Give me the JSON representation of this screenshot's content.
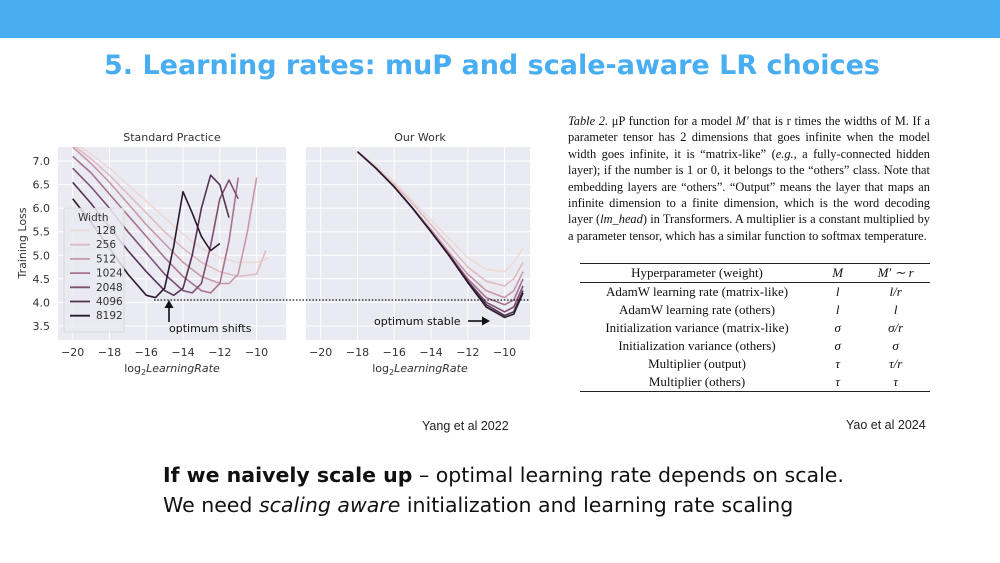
{
  "colors": {
    "bar": "#48adf1",
    "title": "#48adf1"
  },
  "title": "5. Learning rates: muP and scale-aware LR choices",
  "chart_data": [
    {
      "type": "line",
      "title": "Standard Practice",
      "xlabel": "log2LearningRate",
      "ylabel": "Training Loss",
      "xlim": [
        -20.8,
        -8.4
      ],
      "ylim": [
        3.2,
        7.3
      ],
      "xticks": [
        "−20",
        "−18",
        "−16",
        "−14",
        "−12",
        "−10"
      ],
      "yticks": [
        "7.0",
        "6.5",
        "6.0",
        "5.5",
        "5.0",
        "4.5",
        "4.0",
        "3.5"
      ],
      "legend": {
        "title": "Width",
        "placement": "left",
        "entries": [
          "128",
          "256",
          "512",
          "1024",
          "2048",
          "4096",
          "8192"
        ]
      },
      "annotation": "optimum shifts",
      "series": [
        {
          "name": "128",
          "color": "#ecdad6",
          "x": [
            -20,
            -19,
            -18,
            -17,
            -16,
            -15,
            -14,
            -13,
            -12,
            -11,
            -10,
            -9.3
          ],
          "y": [
            7.4,
            7.15,
            6.85,
            6.5,
            6.15,
            5.8,
            5.45,
            5.15,
            4.95,
            4.85,
            4.85,
            4.95
          ]
        },
        {
          "name": "256",
          "color": "#dfbcc0",
          "x": [
            -20,
            -19,
            -18,
            -17,
            -16,
            -15,
            -14,
            -13,
            -12,
            -11,
            -10,
            -9.5
          ],
          "y": [
            7.35,
            7.05,
            6.7,
            6.3,
            5.9,
            5.5,
            5.15,
            4.85,
            4.65,
            4.55,
            4.6,
            5.1
          ]
        },
        {
          "name": "512",
          "color": "#c898a8",
          "x": [
            -20,
            -19,
            -18,
            -17,
            -16,
            -15,
            -14,
            -13,
            -12,
            -11.5,
            -11,
            -10.5,
            -10
          ],
          "y": [
            7.3,
            6.95,
            6.55,
            6.1,
            5.65,
            5.25,
            4.85,
            4.55,
            4.4,
            4.4,
            4.6,
            5.5,
            6.65
          ]
        },
        {
          "name": "1024",
          "color": "#a8728f",
          "x": [
            -20,
            -19,
            -18,
            -17,
            -16,
            -15,
            -14,
            -13,
            -12.5,
            -12,
            -11.5,
            -11
          ],
          "y": [
            7.1,
            6.75,
            6.3,
            5.85,
            5.4,
            4.95,
            4.55,
            4.25,
            4.2,
            4.4,
            5.3,
            6.65
          ]
        },
        {
          "name": "2048",
          "color": "#7e4f73",
          "x": [
            -20,
            -19,
            -18,
            -17,
            -16,
            -15,
            -14,
            -13.5,
            -13,
            -12.5,
            -12,
            -11.5,
            -11
          ],
          "y": [
            6.85,
            6.45,
            6.0,
            5.5,
            5.05,
            4.6,
            4.25,
            4.2,
            4.4,
            5.2,
            6.2,
            6.6,
            6.2
          ]
        },
        {
          "name": "4096",
          "color": "#553352",
          "x": [
            -20,
            -19,
            -18,
            -17,
            -16,
            -15,
            -14.5,
            -14,
            -13.5,
            -13,
            -12.5,
            -12,
            -11.5
          ],
          "y": [
            6.55,
            6.1,
            5.6,
            5.1,
            4.65,
            4.25,
            4.15,
            4.3,
            5.0,
            6.0,
            6.7,
            6.5,
            5.8
          ]
        },
        {
          "name": "8192",
          "color": "#2b1a2e",
          "x": [
            -20,
            -19,
            -18,
            -17,
            -16,
            -15.5,
            -15,
            -14.5,
            -14,
            -13.5,
            -13,
            -12.5,
            -12
          ],
          "y": [
            6.2,
            5.7,
            5.15,
            4.6,
            4.15,
            4.1,
            4.3,
            5.2,
            6.35,
            5.9,
            5.4,
            5.1,
            5.25
          ]
        }
      ]
    },
    {
      "type": "line",
      "title": "Our Work",
      "xlabel": "log2LearningRate",
      "xlim": [
        -20.8,
        -8.4
      ],
      "ylim": [
        3.2,
        7.3
      ],
      "xticks": [
        "−20",
        "−18",
        "−16",
        "−14",
        "−12",
        "−10"
      ],
      "annotation": "optimum stable",
      "series": [
        {
          "name": "128",
          "color": "#ecdad6",
          "x": [
            -18,
            -17,
            -16,
            -15,
            -14,
            -13,
            -12,
            -11,
            -10,
            -9.5,
            -9
          ],
          "y": [
            7.2,
            6.9,
            6.55,
            6.15,
            5.75,
            5.35,
            4.95,
            4.7,
            4.65,
            4.85,
            5.15
          ]
        },
        {
          "name": "256",
          "color": "#dfbcc0",
          "x": [
            -18,
            -17,
            -16,
            -15,
            -14,
            -13,
            -12,
            -11,
            -10,
            -9.5,
            -9
          ],
          "y": [
            7.2,
            6.85,
            6.5,
            6.1,
            5.65,
            5.2,
            4.75,
            4.45,
            4.35,
            4.5,
            4.85
          ]
        },
        {
          "name": "512",
          "color": "#c898a8",
          "x": [
            -18,
            -17,
            -16,
            -15,
            -14,
            -13,
            -12,
            -11,
            -10,
            -9.5,
            -9
          ],
          "y": [
            7.2,
            6.85,
            6.45,
            6.0,
            5.55,
            5.05,
            4.6,
            4.25,
            4.1,
            4.25,
            4.65
          ]
        },
        {
          "name": "1024",
          "color": "#a8728f",
          "x": [
            -18,
            -17,
            -16,
            -15,
            -14,
            -13,
            -12,
            -11,
            -10,
            -9.5,
            -9
          ],
          "y": [
            7.2,
            6.85,
            6.45,
            6.0,
            5.5,
            5.0,
            4.5,
            4.1,
            3.95,
            4.05,
            4.5
          ]
        },
        {
          "name": "2048",
          "color": "#7e4f73",
          "x": [
            -18,
            -17,
            -16,
            -15,
            -14,
            -13,
            -12,
            -11,
            -10,
            -9.5,
            -9
          ],
          "y": [
            7.2,
            6.85,
            6.45,
            6.0,
            5.5,
            5.0,
            4.45,
            4.0,
            3.8,
            3.9,
            4.35
          ]
        },
        {
          "name": "4096",
          "color": "#553352",
          "x": [
            -18,
            -17,
            -16,
            -15,
            -14,
            -13,
            -12,
            -11,
            -10,
            -9.5,
            -9
          ],
          "y": [
            7.2,
            6.85,
            6.45,
            6.0,
            5.5,
            5.0,
            4.45,
            3.95,
            3.72,
            3.8,
            4.25
          ]
        },
        {
          "name": "8192",
          "color": "#2b1a2e",
          "x": [
            -18,
            -17,
            -16,
            -15,
            -14,
            -13,
            -12,
            -11,
            -10,
            -9.5,
            -9
          ],
          "y": [
            7.2,
            6.85,
            6.45,
            6.0,
            5.5,
            4.98,
            4.42,
            3.9,
            3.68,
            3.75,
            4.2
          ]
        }
      ]
    }
  ],
  "caption": {
    "table_label": "Table 2.",
    "p1": " μP function for a model ",
    "mvar": "M′",
    "p2": " that is r times the widths of M. If a parameter tensor has 2 dimensions that goes infinite when the model width goes infinite, it is “matrix-like” (",
    "eg": "e.g.,",
    "p3": " a fully-connected hidden layer); if the number is 1 or 0, it belongs to the “others” class. Note that embedding layers are “others”. “Output” means the layer that maps an infinite dimension to a finite dimension, which is the word decoding layer (",
    "lmhead": "lm_head",
    "p4": ") in Transformers. A multiplier is a constant multiplied by a parameter tensor, which has a similar function to softmax temperature."
  },
  "table": {
    "headers": [
      "Hyperparameter (weight)",
      "M",
      "M′ ∼ r"
    ],
    "rows": [
      [
        "AdamW learning rate (matrix-like)",
        "l",
        "l/r"
      ],
      [
        "AdamW learning rate (others)",
        "l",
        "l"
      ],
      [
        "Initialization variance (matrix-like)",
        "σ",
        "σ/r"
      ],
      [
        "Initialization variance (others)",
        "σ",
        "σ"
      ],
      [
        "Multiplier (output)",
        "τ",
        "τ/r"
      ],
      [
        "Multiplier (others)",
        "τ",
        "τ"
      ]
    ]
  },
  "citations": {
    "left": "Yang et al 2022",
    "right": "Yao et al 2024"
  },
  "bottom": {
    "line1_bold": "If we naively scale up",
    "line1_rest": " – optimal learning rate depends on scale.",
    "line2_pre": "We need ",
    "line2_em": "scaling aware",
    "line2_post": " initialization and learning rate scaling"
  }
}
